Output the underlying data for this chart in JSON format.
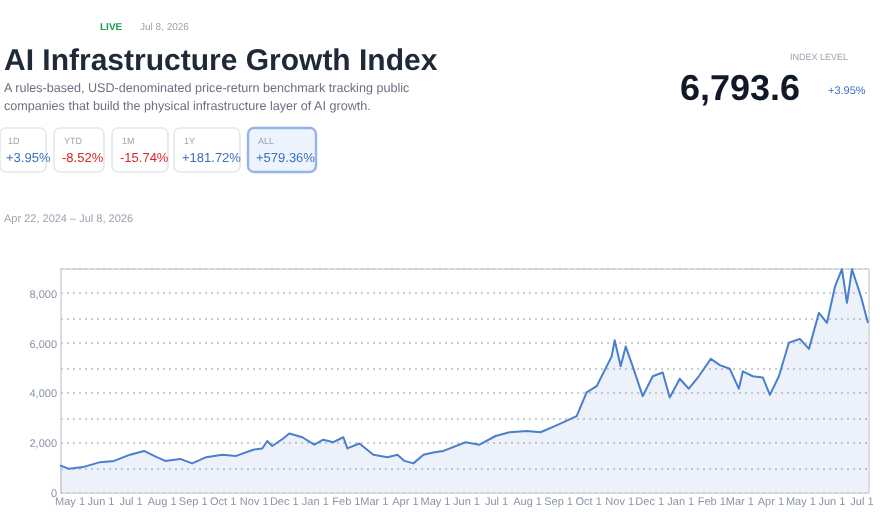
{
  "chart_data": {
    "type": "area",
    "title": "AI Infrastructure Growth Index",
    "subtitle": "A rules-based, USD-denominated price-return benchmark tracking public companies that build the physical infrastructure layer of AI growth.",
    "annotations": [
      "LIVE",
      "Jul 8, 2026",
      "1D",
      "+3.95%",
      "YTD",
      "-8.52%",
      "1M",
      "-15.74%",
      "1Y",
      "+181.72%",
      "ALL",
      "+579.36%",
      "INDEX LEVEL",
      "6,793.6",
      "+3.95%",
      "Apr 22, 2024 – Jul 8, 2026"
    ],
    "x": [
      "2024-04-22",
      "2024-05-01",
      "2024-05-15",
      "2024-06-01",
      "2024-06-15",
      "2024-07-01",
      "2024-07-15",
      "2024-07-25",
      "2024-08-05",
      "2024-08-20",
      "2024-09-01",
      "2024-09-15",
      "2024-10-01",
      "2024-10-15",
      "2024-11-01",
      "2024-11-10",
      "2024-11-15",
      "2024-11-20",
      "2024-12-01",
      "2024-12-07",
      "2024-12-20",
      "2025-01-01",
      "2025-01-10",
      "2025-01-20",
      "2025-01-30",
      "2025-02-03",
      "2025-02-15",
      "2025-03-01",
      "2025-03-15",
      "2025-03-25",
      "2025-04-01",
      "2025-04-10",
      "2025-04-20",
      "2025-05-01",
      "2025-05-10",
      "2025-06-01",
      "2025-06-15",
      "2025-07-01",
      "2025-07-15",
      "2025-08-01",
      "2025-08-15",
      "2025-09-01",
      "2025-09-20",
      "2025-09-30",
      "2025-10-10",
      "2025-10-25",
      "2025-10-28",
      "2025-11-03",
      "2025-11-08",
      "2025-11-15",
      "2025-11-25",
      "2025-12-05",
      "2025-12-15",
      "2025-12-22",
      "2026-01-01",
      "2026-01-10",
      "2026-01-20",
      "2026-02-01",
      "2026-02-10",
      "2026-02-20",
      "2026-03-01",
      "2026-03-05",
      "2026-03-15",
      "2026-03-25",
      "2026-04-01",
      "2026-04-10",
      "2026-04-20",
      "2026-05-01",
      "2026-05-10",
      "2026-05-20",
      "2026-05-28",
      "2026-06-05",
      "2026-06-12",
      "2026-06-17",
      "2026-06-22",
      "2026-07-01",
      "2026-07-08"
    ],
    "series": [
      {
        "color": "#4a7fd0",
        "values": [
          1070,
          930,
          1000,
          1200,
          1250,
          1500,
          1650,
          1450,
          1250,
          1330,
          1150,
          1400,
          1500,
          1450,
          1700,
          1750,
          2050,
          1850,
          2150,
          2350,
          2200,
          1900,
          2100,
          2000,
          2200,
          1750,
          1950,
          1500,
          1400,
          1500,
          1250,
          1150,
          1500,
          1600,
          1650,
          2000,
          1900,
          2250,
          2400,
          2450,
          2400,
          2700,
          3050,
          4000,
          4250,
          5450,
          6100,
          5050,
          5850,
          5050,
          3850,
          4650,
          4800,
          3800,
          4550,
          4150,
          4650,
          5350,
          5100,
          4950,
          4150,
          4850,
          4650,
          4600,
          3900,
          4650,
          6000,
          6150,
          5750,
          7200,
          6800,
          8250,
          8950,
          7600,
          8950,
          7850,
          6793.6
        ]
      }
    ],
    "xlim": [
      "2024-04-22",
      "2026-07-08"
    ],
    "xticks": [
      {
        "value": "2024-05-01",
        "label": "May 1"
      },
      {
        "value": "2024-06-01",
        "label": "Jun 1"
      },
      {
        "value": "2024-07-01",
        "label": "Jul 1"
      },
      {
        "value": "2024-08-01",
        "label": "Aug 1"
      },
      {
        "value": "2024-09-01",
        "label": "Sep 1"
      },
      {
        "value": "2024-10-01",
        "label": "Oct 1"
      },
      {
        "value": "2024-11-01",
        "label": "Nov 1"
      },
      {
        "value": "2024-12-01",
        "label": "Dec 1"
      },
      {
        "value": "2025-01-01",
        "label": "Jan 1"
      },
      {
        "value": "2025-02-01",
        "label": "Feb 1"
      },
      {
        "value": "2025-03-01",
        "label": "Mar 1"
      },
      {
        "value": "2025-04-01",
        "label": "Apr 1"
      },
      {
        "value": "2025-05-01",
        "label": "May 1"
      },
      {
        "value": "2025-06-01",
        "label": "Jun 1"
      },
      {
        "value": "2025-07-01",
        "label": "Jul 1"
      },
      {
        "value": "2025-08-01",
        "label": "Aug 1"
      },
      {
        "value": "2025-09-01",
        "label": "Sep 1"
      },
      {
        "value": "2025-10-01",
        "label": "Oct 1"
      },
      {
        "value": "2025-11-01",
        "label": "Nov 1"
      },
      {
        "value": "2025-12-01",
        "label": "Dec 1"
      },
      {
        "value": "2026-01-01",
        "label": "Jan 1"
      },
      {
        "value": "2026-02-01",
        "label": "Feb 1"
      },
      {
        "value": "2026-03-01",
        "label": "Mar 1"
      },
      {
        "value": "2026-04-01",
        "label": "Apr 1"
      },
      {
        "value": "2026-05-01",
        "label": "May 1"
      },
      {
        "value": "2026-06-01",
        "label": "Jun 1"
      },
      {
        "value": "2026-07-01",
        "label": "Jul 1"
      }
    ],
    "ylim": [
      0,
      9000
    ],
    "yticks": [
      0,
      {
        "value": 1000,
        "label": null
      },
      {
        "value": 2000,
        "label": "2,000"
      },
      {
        "value": 3000,
        "label": null
      },
      {
        "value": 4000,
        "label": "4,000"
      },
      {
        "value": 5000,
        "label": null
      },
      {
        "value": 6000,
        "label": "6,000"
      },
      {
        "value": 7000,
        "label": null
      },
      {
        "value": 8000,
        "label": "8,000"
      },
      {
        "value": 9000,
        "label": null
      }
    ],
    "grid": "y",
    "line_style": "solid"
  }
}
